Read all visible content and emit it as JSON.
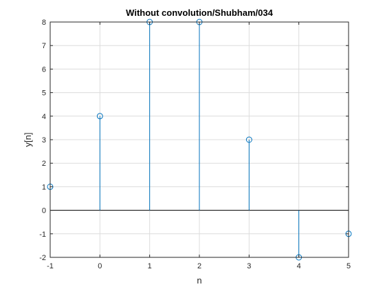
{
  "chart_data": {
    "type": "stem",
    "title": "Without convolution/Shubham/034",
    "xlabel": "n",
    "ylabel": "y[n]",
    "x": [
      -1,
      0,
      1,
      2,
      3,
      4,
      5
    ],
    "y": [
      1,
      4,
      8,
      8,
      3,
      -2,
      -1
    ],
    "xlim": [
      -1,
      5
    ],
    "ylim": [
      -2,
      8
    ],
    "xticks": [
      -1,
      0,
      1,
      2,
      3,
      4,
      5
    ],
    "yticks": [
      -2,
      -1,
      0,
      1,
      2,
      3,
      4,
      5,
      6,
      7,
      8
    ],
    "xtick_labels": [
      "-1",
      "0",
      "1",
      "2",
      "3",
      "4",
      "5"
    ],
    "ytick_labels": [
      "-2",
      "-1",
      "0",
      "1",
      "2",
      "3",
      "4",
      "5",
      "6",
      "7",
      "8"
    ],
    "grid": true,
    "baseline": 0,
    "colors": {
      "stem": "#0072BD",
      "grid": "#dcdcdc",
      "axes": "#262626",
      "baseline": "#000000"
    }
  }
}
